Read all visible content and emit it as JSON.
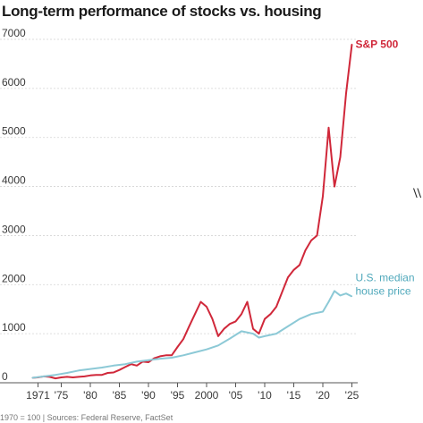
{
  "title": "Long-term performance of stocks vs. housing",
  "footnote": "1970 = 100 | Sources: Federal Reserve, FactSet",
  "brand_mark": "\\\\",
  "chart_data": {
    "type": "line",
    "title": "Long-term performance of stocks vs. housing",
    "xlabel": "",
    "ylabel": "",
    "xlim": [
      1970,
      2026
    ],
    "ylim": [
      0,
      7000
    ],
    "yticks": [
      0,
      1000,
      2000,
      3000,
      4000,
      5000,
      6000,
      7000
    ],
    "ytick_labels": [
      "0",
      "1000",
      "2000",
      "3000",
      "4000",
      "5000",
      "6000",
      "7000"
    ],
    "xticks": [
      1971,
      1975,
      1980,
      1985,
      1990,
      1995,
      2000,
      2005,
      2010,
      2015,
      2020,
      2025
    ],
    "xtick_labels": [
      "1971",
      "'75",
      "'80",
      "'85",
      "'90",
      "'95",
      "2000",
      "'05",
      "'10",
      "'15",
      "'20",
      "'25"
    ],
    "grid": "horizontal",
    "series": [
      {
        "name": "S&P 500",
        "color": "#d0283a",
        "x": [
          1970,
          1971,
          1972,
          1973,
          1974,
          1975,
          1976,
          1977,
          1978,
          1979,
          1980,
          1981,
          1982,
          1983,
          1984,
          1985,
          1986,
          1987,
          1988,
          1989,
          1990,
          1991,
          1992,
          1993,
          1994,
          1995,
          1996,
          1997,
          1998,
          1999,
          2000,
          2001,
          2002,
          2003,
          2004,
          2005,
          2006,
          2007,
          2008,
          2009,
          2010,
          2011,
          2012,
          2013,
          2014,
          2015,
          2016,
          2017,
          2018,
          2019,
          2020,
          2021,
          2022,
          2023,
          2024,
          2025
        ],
        "values": [
          100,
          110,
          130,
          120,
          90,
          110,
          120,
          110,
          120,
          130,
          150,
          160,
          160,
          200,
          210,
          260,
          320,
          380,
          350,
          430,
          420,
          500,
          540,
          560,
          560,
          730,
          890,
          1150,
          1400,
          1650,
          1550,
          1300,
          950,
          1100,
          1200,
          1250,
          1400,
          1650,
          1100,
          1000,
          1300,
          1400,
          1550,
          1850,
          2150,
          2300,
          2400,
          2700,
          2900,
          3000,
          3800,
          5200,
          4000,
          4600,
          5900,
          6900
        ]
      },
      {
        "name": "U.S. median house price",
        "color": "#8cc9d6",
        "x": [
          1970,
          1972,
          1974,
          1976,
          1978,
          1980,
          1982,
          1984,
          1986,
          1988,
          1990,
          1992,
          1994,
          1996,
          1998,
          2000,
          2002,
          2004,
          2006,
          2008,
          2009,
          2010,
          2012,
          2014,
          2016,
          2018,
          2020,
          2021,
          2022,
          2023,
          2024,
          2025
        ],
        "values": [
          100,
          130,
          160,
          200,
          250,
          280,
          310,
          350,
          380,
          430,
          460,
          490,
          510,
          560,
          620,
          680,
          760,
          900,
          1050,
          1000,
          920,
          950,
          1000,
          1150,
          1300,
          1400,
          1450,
          1650,
          1870,
          1780,
          1820,
          1760
        ]
      }
    ]
  }
}
